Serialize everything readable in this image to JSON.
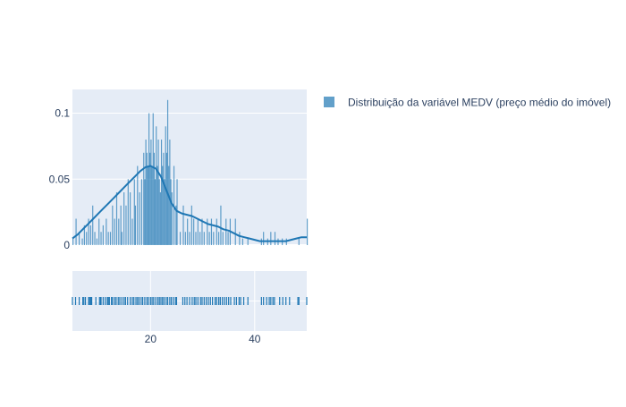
{
  "chart_data": {
    "type": "distplot",
    "legend": {
      "entries": [
        "Distribuição da variável MEDV (preço médio do imóvel)"
      ],
      "placement": "top-right",
      "color": "#1f77b4"
    },
    "colors": {
      "series": "#1f77b4",
      "plot_background": "#e5ecf6",
      "grid": "#ffffff",
      "text": "#2a3f5f"
    },
    "histogram": {
      "xlim": [
        5,
        50
      ],
      "ylim": [
        0,
        0.118
      ],
      "yticks": [
        0,
        0.05,
        0.1
      ],
      "ytick_labels": [
        "0",
        "0.05",
        "0.1"
      ],
      "bin_width": 0.2,
      "bins": [
        [
          5.0,
          0.005
        ],
        [
          5.6,
          0.02
        ],
        [
          6.2,
          0.01
        ],
        [
          6.8,
          0.005
        ],
        [
          7.2,
          0.015
        ],
        [
          7.6,
          0.01
        ],
        [
          8.0,
          0.02
        ],
        [
          8.4,
          0.015
        ],
        [
          8.8,
          0.03
        ],
        [
          9.2,
          0.01
        ],
        [
          9.6,
          0.005
        ],
        [
          10.0,
          0.02
        ],
        [
          10.4,
          0.01
        ],
        [
          10.8,
          0.015
        ],
        [
          11.4,
          0.02
        ],
        [
          11.8,
          0.01
        ],
        [
          12.2,
          0.01
        ],
        [
          12.6,
          0.03
        ],
        [
          13.0,
          0.02
        ],
        [
          13.4,
          0.04
        ],
        [
          13.8,
          0.02
        ],
        [
          14.2,
          0.03
        ],
        [
          14.4,
          0.01
        ],
        [
          14.8,
          0.04
        ],
        [
          15.2,
          0.03
        ],
        [
          15.6,
          0.05
        ],
        [
          16.0,
          0.04
        ],
        [
          16.4,
          0.02
        ],
        [
          16.8,
          0.05
        ],
        [
          17.0,
          0.03
        ],
        [
          17.4,
          0.06
        ],
        [
          17.8,
          0.04
        ],
        [
          18.2,
          0.05
        ],
        [
          18.6,
          0.07
        ],
        [
          18.8,
          0.05
        ],
        [
          19.0,
          0.08
        ],
        [
          19.2,
          0.07
        ],
        [
          19.4,
          0.06
        ],
        [
          19.6,
          0.1
        ],
        [
          19.8,
          0.07
        ],
        [
          20.0,
          0.08
        ],
        [
          20.2,
          0.06
        ],
        [
          20.4,
          0.1
        ],
        [
          20.6,
          0.07
        ],
        [
          20.8,
          0.05
        ],
        [
          21.0,
          0.09
        ],
        [
          21.2,
          0.06
        ],
        [
          21.4,
          0.08
        ],
        [
          21.6,
          0.05
        ],
        [
          21.8,
          0.04
        ],
        [
          22.0,
          0.08
        ],
        [
          22.2,
          0.06
        ],
        [
          22.4,
          0.07
        ],
        [
          22.6,
          0.05
        ],
        [
          22.8,
          0.09
        ],
        [
          23.0,
          0.07
        ],
        [
          23.2,
          0.11
        ],
        [
          23.4,
          0.06
        ],
        [
          23.6,
          0.08
        ],
        [
          23.8,
          0.05
        ],
        [
          24.0,
          0.04
        ],
        [
          24.4,
          0.06
        ],
        [
          24.8,
          0.03
        ],
        [
          25.0,
          0.05
        ],
        [
          25.6,
          0.01
        ],
        [
          26.2,
          0.03
        ],
        [
          26.6,
          0.01
        ],
        [
          27.0,
          0.02
        ],
        [
          27.4,
          0.01
        ],
        [
          27.8,
          0.03
        ],
        [
          28.2,
          0.02
        ],
        [
          28.6,
          0.01
        ],
        [
          29.0,
          0.02
        ],
        [
          29.4,
          0.01
        ],
        [
          29.8,
          0.02
        ],
        [
          30.2,
          0.01
        ],
        [
          30.8,
          0.02
        ],
        [
          31.2,
          0.01
        ],
        [
          31.6,
          0.02
        ],
        [
          32.0,
          0.01
        ],
        [
          32.6,
          0.02
        ],
        [
          33.0,
          0.01
        ],
        [
          33.4,
          0.03
        ],
        [
          33.8,
          0.01
        ],
        [
          34.4,
          0.02
        ],
        [
          34.8,
          0.01
        ],
        [
          35.2,
          0.02
        ],
        [
          36.2,
          0.02
        ],
        [
          37.0,
          0.01
        ],
        [
          37.6,
          0.005
        ],
        [
          38.6,
          0.005
        ],
        [
          41.2,
          0.005
        ],
        [
          41.6,
          0.01
        ],
        [
          42.4,
          0.005
        ],
        [
          43.0,
          0.01
        ],
        [
          43.8,
          0.01
        ],
        [
          44.4,
          0.005
        ],
        [
          45.2,
          0.005
        ],
        [
          46.0,
          0.005
        ],
        [
          48.4,
          0.005
        ],
        [
          50.0,
          0.02
        ]
      ]
    },
    "kde": {
      "points": [
        [
          5,
          0.005
        ],
        [
          6,
          0.008
        ],
        [
          7,
          0.012
        ],
        [
          8,
          0.016
        ],
        [
          9,
          0.02
        ],
        [
          10,
          0.024
        ],
        [
          11,
          0.028
        ],
        [
          12,
          0.032
        ],
        [
          13,
          0.036
        ],
        [
          14,
          0.04
        ],
        [
          15,
          0.044
        ],
        [
          16,
          0.048
        ],
        [
          17,
          0.052
        ],
        [
          18,
          0.056
        ],
        [
          19,
          0.059
        ],
        [
          20,
          0.06
        ],
        [
          21,
          0.058
        ],
        [
          22,
          0.052
        ],
        [
          23,
          0.042
        ],
        [
          24,
          0.032
        ],
        [
          25,
          0.026
        ],
        [
          26,
          0.024
        ],
        [
          27,
          0.023
        ],
        [
          28,
          0.022
        ],
        [
          29,
          0.02
        ],
        [
          30,
          0.018
        ],
        [
          31,
          0.016
        ],
        [
          32,
          0.015
        ],
        [
          33,
          0.014
        ],
        [
          34,
          0.012
        ],
        [
          35,
          0.011
        ],
        [
          36,
          0.009
        ],
        [
          37,
          0.007
        ],
        [
          38,
          0.006
        ],
        [
          39,
          0.005
        ],
        [
          40,
          0.004
        ],
        [
          41,
          0.003
        ],
        [
          42,
          0.003
        ],
        [
          43,
          0.003
        ],
        [
          44,
          0.003
        ],
        [
          45,
          0.003
        ],
        [
          46,
          0.003
        ],
        [
          47,
          0.004
        ],
        [
          48,
          0.005
        ],
        [
          49,
          0.006
        ],
        [
          50,
          0.006
        ]
      ]
    },
    "rug": {
      "xticks": [
        20,
        40
      ],
      "xtick_labels": [
        "20",
        "40"
      ],
      "values": [
        5.0,
        5.6,
        6.3,
        7.0,
        7.2,
        7.5,
        8.1,
        8.3,
        8.5,
        8.7,
        9.5,
        10.2,
        10.4,
        10.5,
        10.9,
        11.3,
        11.7,
        11.9,
        12.1,
        12.5,
        12.7,
        13.1,
        13.4,
        13.8,
        14.1,
        14.5,
        14.9,
        15.2,
        15.6,
        16.1,
        16.5,
        16.8,
        17.2,
        17.5,
        17.8,
        18.2,
        18.5,
        18.9,
        19.3,
        19.6,
        20.0,
        20.3,
        20.6,
        21.0,
        21.4,
        21.7,
        22.0,
        22.3,
        22.6,
        23.0,
        23.3,
        23.7,
        24.0,
        24.4,
        24.8,
        25.0,
        26.2,
        26.6,
        27.0,
        27.5,
        28.0,
        28.4,
        28.7,
        29.1,
        29.6,
        29.9,
        30.3,
        30.7,
        31.1,
        31.5,
        31.9,
        32.4,
        32.7,
        33.1,
        33.4,
        33.8,
        34.2,
        34.6,
        35.0,
        35.4,
        36.1,
        36.5,
        37.0,
        37.3,
        37.9,
        38.7,
        41.3,
        41.7,
        42.3,
        42.8,
        43.1,
        43.5,
        43.8,
        44.8,
        45.4,
        46.0,
        46.7,
        48.3,
        48.5,
        50.0
      ]
    }
  }
}
